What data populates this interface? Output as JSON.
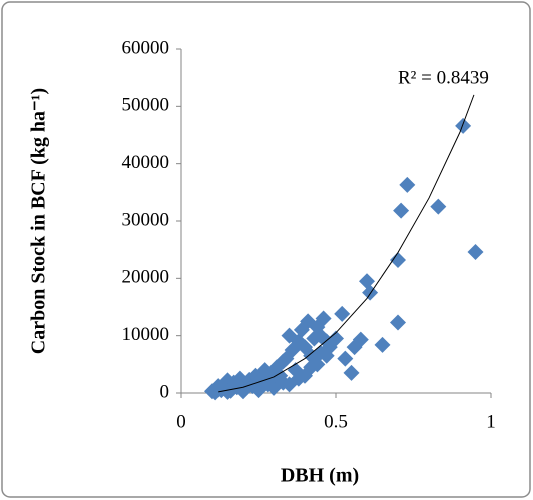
{
  "chart_data": {
    "type": "scatter",
    "x_label": "DBH (m)",
    "y_label": "Carbon Stock in BCF (kg ha⁻¹)",
    "annotation": "R² = 0.8439",
    "color": "#4f81bd",
    "x": [
      0.1,
      0.11,
      0.12,
      0.12,
      0.13,
      0.14,
      0.15,
      0.15,
      0.16,
      0.17,
      0.18,
      0.19,
      0.2,
      0.21,
      0.22,
      0.23,
      0.24,
      0.25,
      0.26,
      0.27,
      0.28,
      0.29,
      0.3,
      0.31,
      0.32,
      0.33,
      0.34,
      0.35,
      0.36,
      0.37,
      0.38,
      0.39,
      0.4,
      0.41,
      0.42,
      0.43,
      0.44,
      0.45,
      0.46,
      0.47,
      0.48,
      0.35,
      0.38,
      0.42,
      0.45,
      0.5,
      0.52,
      0.53,
      0.55,
      0.56,
      0.58,
      0.6,
      0.61,
      0.65,
      0.7,
      0.7,
      0.71,
      0.73,
      0.83,
      0.91,
      0.95,
      0.15,
      0.2,
      0.25,
      0.3,
      0.33,
      0.4,
      0.44,
      0.47
    ],
    "values": [
      300,
      100,
      600,
      1200,
      500,
      1500,
      800,
      2200,
      400,
      1800,
      1000,
      2500,
      600,
      1700,
      2300,
      1200,
      3000,
      500,
      2600,
      4000,
      1500,
      3500,
      2000,
      4500,
      3000,
      5500,
      6000,
      10000,
      7500,
      4000,
      9000,
      11000,
      8000,
      12500,
      6500,
      9500,
      11500,
      10000,
      13000,
      9000,
      8000,
      1500,
      2500,
      4500,
      7000,
      9500,
      13800,
      6000,
      3500,
      8000,
      9300,
      19500,
      17500,
      8400,
      12300,
      23200,
      31800,
      36300,
      32500,
      46600,
      24600,
      200,
      300,
      700,
      900,
      1800,
      3000,
      5000,
      6500
    ],
    "trendline": {
      "color": "#000000",
      "x": [
        0.12,
        0.2,
        0.3,
        0.4,
        0.5,
        0.6,
        0.7,
        0.8,
        0.9,
        0.945
      ],
      "values": [
        200,
        1000,
        2800,
        6000,
        10500,
        16500,
        24500,
        34000,
        45500,
        52000
      ]
    },
    "xlim": [
      0,
      1
    ],
    "xticks": [
      0,
      0.5,
      1
    ],
    "ylim": [
      0,
      60000
    ],
    "yticks": [
      0,
      10000,
      20000,
      30000,
      40000,
      50000,
      60000
    ]
  }
}
